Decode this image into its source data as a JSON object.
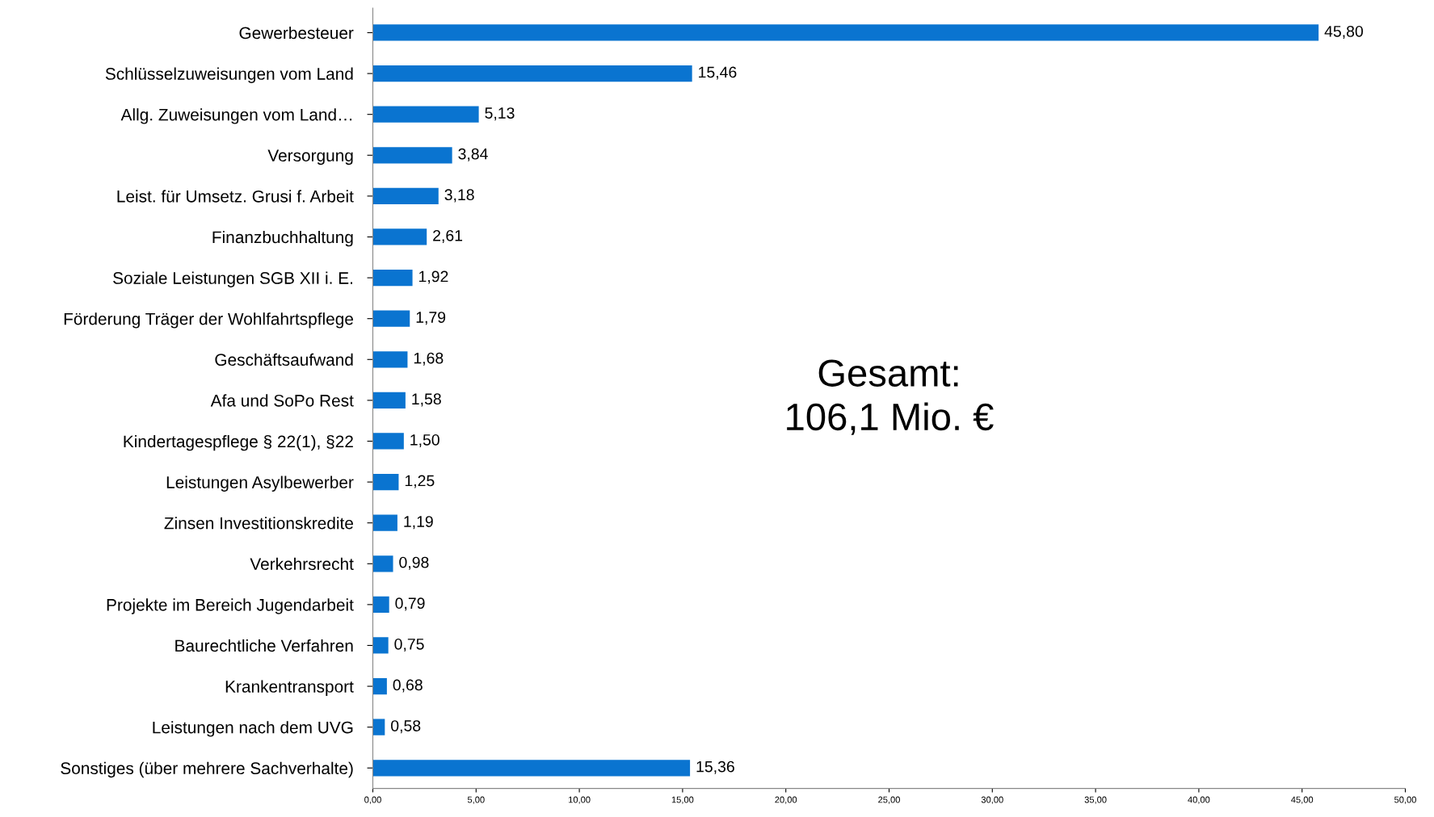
{
  "chart_data": {
    "type": "bar",
    "orientation": "horizontal",
    "categories": [
      "Gewerbesteuer",
      "Schlüsselzuweisungen vom Land",
      "Allg. Zuweisungen vom Land…",
      "Versorgung",
      "Leist. für Umsetz. Grusi f. Arbeit",
      "Finanzbuchhaltung",
      "Soziale Leistungen SGB XII i. E.",
      "Förderung Träger der Wohlfahrtspflege",
      "Geschäftsaufwand",
      "Afa und SoPo Rest",
      "Kindertagespflege § 22(1), §22",
      "Leistungen Asylbewerber",
      "Zinsen Investitionskredite",
      "Verkehrsrecht",
      "Projekte im Bereich Jugendarbeit",
      "Baurechtliche Verfahren",
      "Krankentransport",
      "Leistungen nach dem UVG",
      "Sonstiges (über mehrere Sachverhalte)"
    ],
    "values": [
      45.8,
      15.46,
      5.13,
      3.84,
      3.18,
      2.61,
      1.92,
      1.79,
      1.68,
      1.58,
      1.5,
      1.25,
      1.19,
      0.98,
      0.79,
      0.75,
      0.68,
      0.58,
      15.36
    ],
    "value_labels": [
      "45,80",
      "15,46",
      "5,13",
      "3,84",
      "3,18",
      "2,61",
      "1,92",
      "1,79",
      "1,68",
      "1,58",
      "1,50",
      "1,25",
      "1,19",
      "0,98",
      "0,79",
      "0,75",
      "0,68",
      "0,58",
      "15,36"
    ],
    "color": "#0a74d0",
    "xlim": [
      0,
      50
    ],
    "xticks": [
      {
        "value": 0,
        "label": "0,00"
      },
      {
        "value": 5,
        "label": "5,00"
      },
      {
        "value": 10,
        "label": "10,00"
      },
      {
        "value": 15,
        "label": "15,00"
      },
      {
        "value": 20,
        "label": "20,00"
      },
      {
        "value": 25,
        "label": "25,00"
      },
      {
        "value": 30,
        "label": "30,00"
      },
      {
        "value": 35,
        "label": "35,00"
      },
      {
        "value": 40,
        "label": "40,00"
      },
      {
        "value": 45,
        "label": "45,00"
      },
      {
        "value": 50,
        "label": "50,00"
      }
    ],
    "annotations": [
      "Gesamt:\n106,1 Mio. €"
    ],
    "grid": false,
    "legend": false
  }
}
